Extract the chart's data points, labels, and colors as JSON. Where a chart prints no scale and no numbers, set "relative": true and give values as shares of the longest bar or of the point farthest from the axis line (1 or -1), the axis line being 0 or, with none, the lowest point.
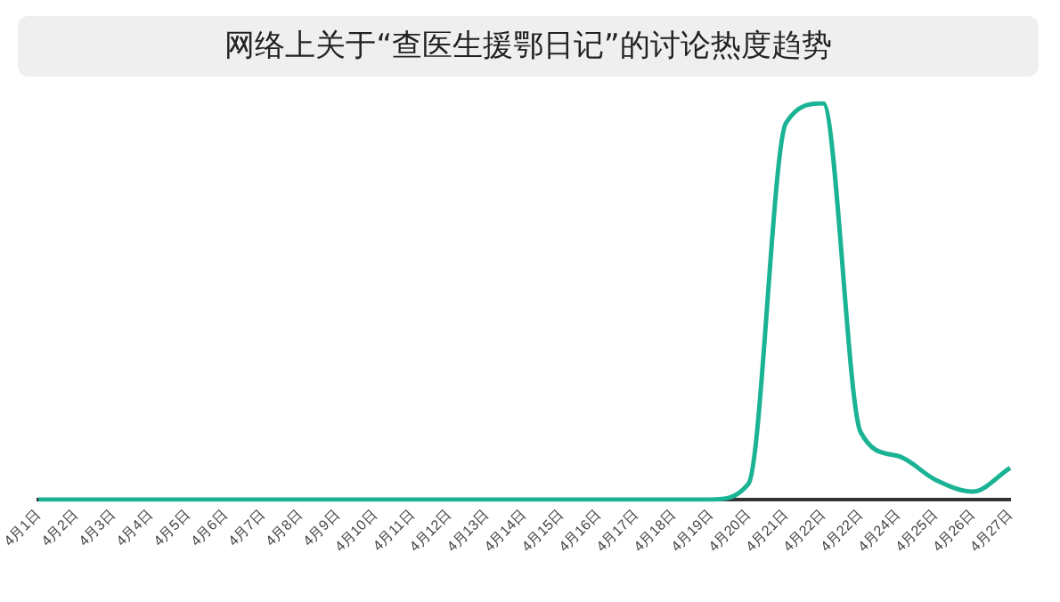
{
  "chart_data": {
    "type": "line",
    "title": "网络上关于“查医生援鄂日记”的讨论热度趋势",
    "relative": true,
    "categories": [
      "4月1日",
      "4月2日",
      "4月3日",
      "4月4日",
      "4月5日",
      "4月6日",
      "4月7日",
      "4月8日",
      "4月9日",
      "4月10日",
      "4月11日",
      "4月12日",
      "4月13日",
      "4月14日",
      "4月15日",
      "4月16日",
      "4月17日",
      "4月18日",
      "4月19日",
      "4月20日",
      "4月21日",
      "4月22日",
      "4月22日",
      "4月24日",
      "4月25日",
      "4月26日",
      "4月27日"
    ],
    "series": [
      {
        "color": "#1ab394",
        "values": [
          0,
          0,
          0,
          0,
          0,
          0,
          0,
          0,
          0,
          0,
          0,
          0,
          0,
          0,
          0,
          0,
          0,
          0,
          0,
          0.04,
          0.95,
          1,
          0.17,
          0.11,
          0.05,
          0.02,
          0.08
        ]
      }
    ],
    "grid": false,
    "legend": false,
    "marker": "none",
    "line_style": "solid"
  }
}
